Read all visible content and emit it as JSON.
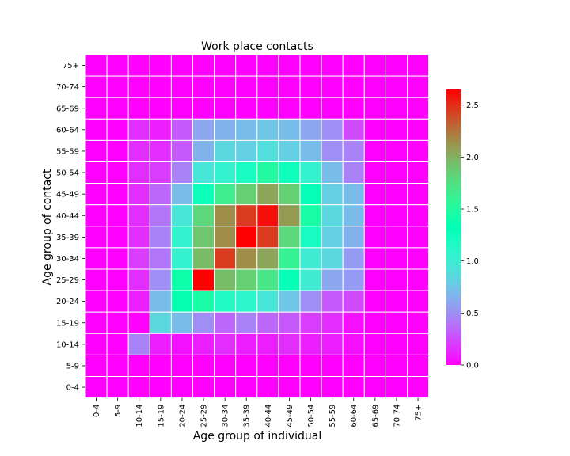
{
  "chart_data": {
    "type": "heatmap",
    "title": "Work place contacts",
    "xlabel": "Age group of individual",
    "ylabel": "Age group of contact",
    "x_categories": [
      "0-4",
      "5-9",
      "10-14",
      "15-19",
      "20-24",
      "25-29",
      "30-34",
      "35-39",
      "40-44",
      "45-49",
      "50-54",
      "55-59",
      "60-64",
      "65-69",
      "70-74",
      "75+"
    ],
    "y_categories": [
      "75+",
      "70-74",
      "65-69",
      "60-64",
      "55-59",
      "50-54",
      "45-49",
      "40-44",
      "35-39",
      "30-34",
      "25-29",
      "20-24",
      "15-19",
      "10-14",
      "5-9",
      "0-4"
    ],
    "values": [
      [
        0,
        0,
        0,
        0,
        0,
        0,
        0,
        0,
        0,
        0,
        0,
        0,
        0,
        0,
        0,
        0
      ],
      [
        0,
        0,
        0,
        0,
        0,
        0,
        0,
        0,
        0,
        0,
        0,
        0,
        0,
        0,
        0,
        0
      ],
      [
        0,
        0,
        0,
        0,
        0,
        0,
        0,
        0,
        0,
        0,
        0,
        0,
        0,
        0,
        0,
        0
      ],
      [
        0,
        0,
        0.15,
        0.1,
        0.3,
        0.6,
        0.65,
        0.7,
        0.75,
        0.7,
        0.6,
        0.5,
        0.25,
        0,
        0,
        0
      ],
      [
        0,
        0,
        0.15,
        0.15,
        0.3,
        0.65,
        0.85,
        0.8,
        0.9,
        0.8,
        0.7,
        0.5,
        0.45,
        0,
        0,
        0
      ],
      [
        0,
        0,
        0.15,
        0.2,
        0.45,
        0.95,
        1.05,
        1.2,
        1.5,
        1.25,
        1.05,
        0.7,
        0.45,
        0,
        0,
        0
      ],
      [
        0,
        0,
        0.15,
        0.35,
        0.7,
        1.25,
        1.65,
        1.85,
        2.05,
        1.85,
        1.3,
        0.8,
        0.7,
        0,
        0,
        0
      ],
      [
        0,
        0,
        0.15,
        0.4,
        0.95,
        1.8,
        2.15,
        2.45,
        2.6,
        2.1,
        1.45,
        0.85,
        0.7,
        0,
        0,
        0
      ],
      [
        0,
        0,
        0.15,
        0.45,
        1.05,
        1.9,
        2.15,
        2.65,
        2.45,
        1.8,
        1.2,
        0.8,
        0.65,
        0,
        0,
        0
      ],
      [
        0,
        0,
        0.2,
        0.4,
        1.05,
        1.95,
        2.45,
        2.15,
        2.05,
        1.6,
        1.0,
        0.85,
        0.55,
        0,
        0,
        0
      ],
      [
        0,
        0,
        0.15,
        0.5,
        1.4,
        2.65,
        1.95,
        1.85,
        1.7,
        1.3,
        1.0,
        0.6,
        0.55,
        0,
        0,
        0
      ],
      [
        0,
        0,
        0.1,
        0.7,
        1.35,
        1.45,
        1.15,
        1.1,
        0.95,
        0.75,
        0.5,
        0.3,
        0.25,
        0,
        0,
        0
      ],
      [
        0,
        0,
        0,
        0.85,
        0.7,
        0.5,
        0.35,
        0.45,
        0.35,
        0.3,
        0.2,
        0.15,
        0.05,
        0,
        0,
        0
      ],
      [
        0,
        0,
        0.45,
        0.1,
        0.05,
        0.1,
        0.15,
        0.1,
        0.1,
        0.15,
        0.1,
        0.1,
        0.05,
        0,
        0,
        0
      ],
      [
        0,
        0,
        0,
        0,
        0,
        0,
        0,
        0,
        0,
        0,
        0,
        0,
        0,
        0,
        0,
        0
      ],
      [
        0,
        0,
        0,
        0,
        0,
        0,
        0,
        0,
        0,
        0,
        0,
        0,
        0,
        0,
        0,
        0
      ]
    ],
    "colormap": "rainbow",
    "vmin": 0,
    "vmax": 2.65,
    "colorbar_ticks": [
      "0.0",
      "0.5",
      "1.0",
      "1.5",
      "2.0",
      "2.5"
    ],
    "colorbar_tick_values": [
      0,
      0.5,
      1.0,
      1.5,
      2.0,
      2.5
    ]
  }
}
